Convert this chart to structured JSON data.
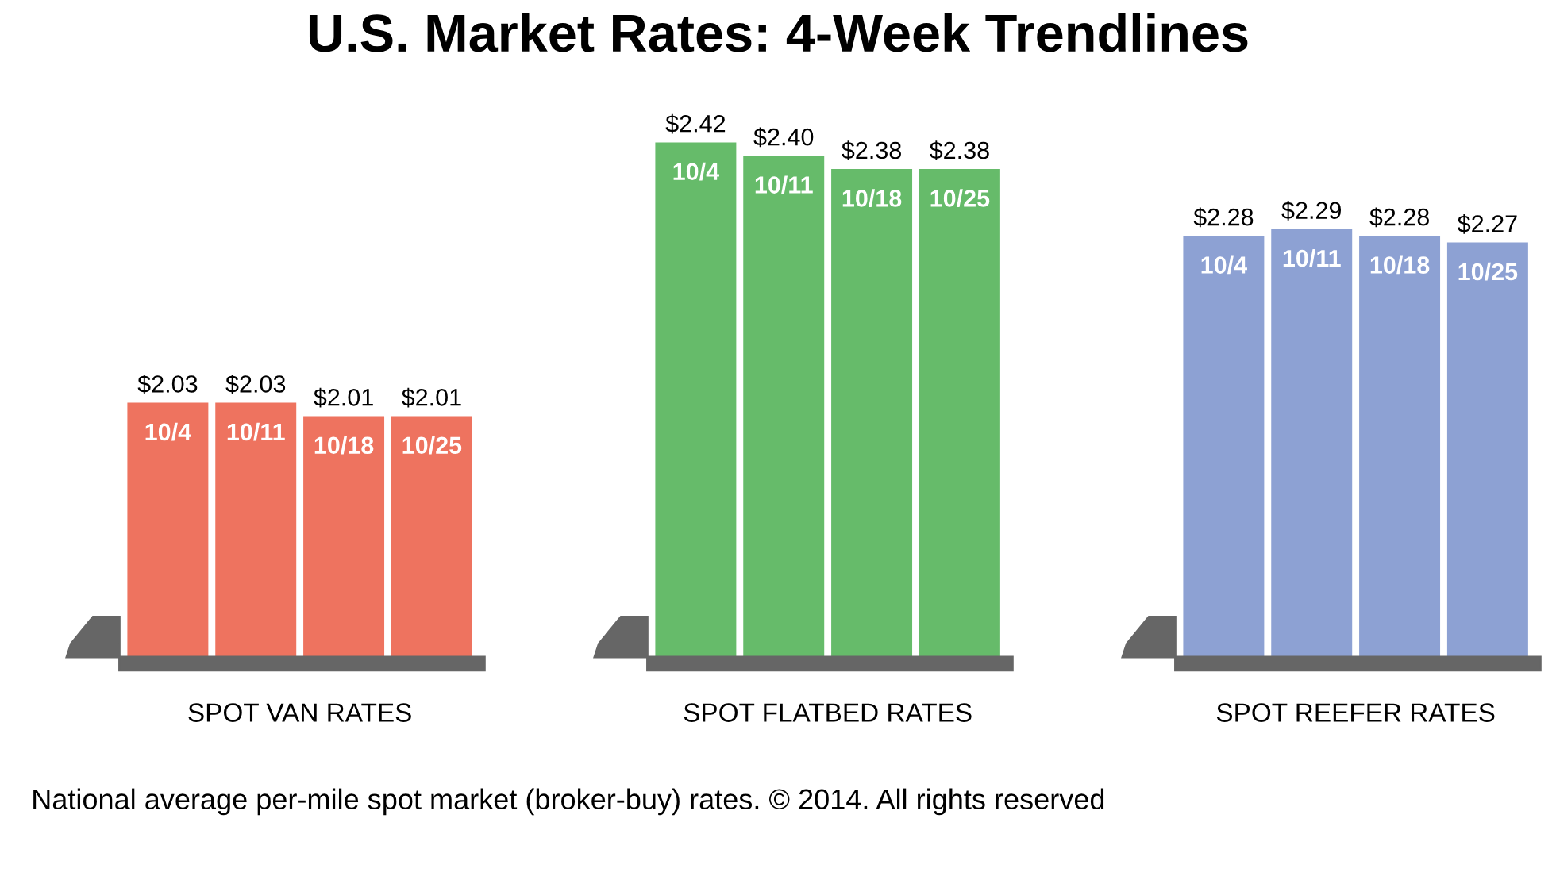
{
  "chart_data": {
    "type": "bar",
    "title": "U.S. Market Rates: 4-Week Trendlines",
    "categories": [
      "10/4",
      "10/11",
      "10/18",
      "10/25",
      null,
      null,
      "10/4",
      "10/11",
      "10/18",
      "10/25",
      null,
      null,
      "10/4",
      "10/11",
      "10/18",
      "10/25"
    ],
    "series": [
      {
        "name": "SPOT VAN RATES",
        "color": "#ee735f",
        "values": [
          2.03,
          2.03,
          2.01,
          2.01,
          null,
          null,
          null,
          null,
          null,
          null,
          null,
          null,
          null,
          null,
          null,
          null
        ],
        "value_labels": [
          "$2.03",
          "$2.03",
          "$2.01",
          "$2.01",
          null,
          null,
          null,
          null,
          null,
          null,
          null,
          null,
          null,
          null,
          null,
          null
        ]
      },
      {
        "name": "SPOT FLATBED RATES",
        "color": "#66bb6a",
        "values": [
          null,
          null,
          null,
          null,
          null,
          null,
          2.42,
          2.4,
          2.38,
          2.38,
          null,
          null,
          null,
          null,
          null,
          null
        ],
        "value_labels": [
          null,
          null,
          null,
          null,
          null,
          null,
          "$2.42",
          "$2.40",
          "$2.38",
          "$2.38",
          null,
          null,
          null,
          null,
          null,
          null
        ]
      },
      {
        "name": "SPOT REEFER RATES",
        "color": "#8da1d3",
        "values": [
          null,
          null,
          null,
          null,
          null,
          null,
          null,
          null,
          null,
          null,
          null,
          null,
          2.28,
          2.29,
          2.28,
          2.27
        ],
        "value_labels": [
          null,
          null,
          null,
          null,
          null,
          null,
          null,
          null,
          null,
          null,
          null,
          null,
          "$2.28",
          "$2.29",
          "$2.28",
          "$2.27"
        ]
      }
    ],
    "annotations": [
      "National average per-mile spot market (broker-buy) rates. © 2014. All rights reserved"
    ]
  }
}
